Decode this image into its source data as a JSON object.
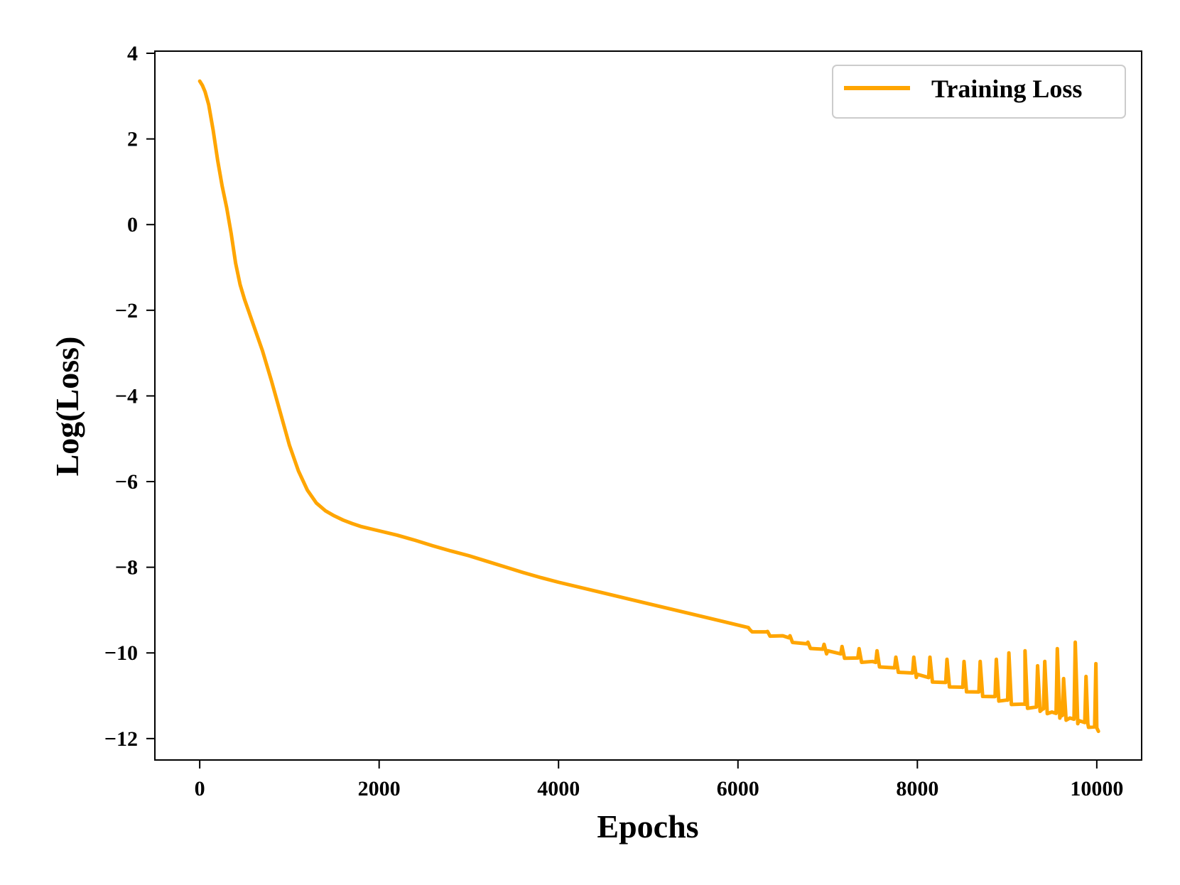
{
  "chart_data": {
    "type": "line",
    "title": "",
    "xlabel": "Epochs",
    "ylabel": "Log(Loss)",
    "xlim": [
      -500,
      10500
    ],
    "ylim": [
      -12.5,
      4.05
    ],
    "x_ticks": [
      0,
      2000,
      4000,
      6000,
      8000,
      10000
    ],
    "y_ticks": [
      4,
      2,
      0,
      -2,
      -4,
      -6,
      -8,
      -10,
      -12
    ],
    "y_tick_labels": [
      "4",
      "2",
      "0",
      "−2",
      "−4",
      "−6",
      "−8",
      "−10",
      "−12"
    ],
    "x_tick_labels": [
      "0",
      "2000",
      "4000",
      "6000",
      "8000",
      "10000"
    ],
    "grid": false,
    "legend": {
      "position": "top-right",
      "entries": [
        "Training Loss"
      ]
    },
    "series": [
      {
        "name": "Training Loss",
        "color": "#FFA500",
        "x": [
          0,
          30,
          60,
          100,
          150,
          200,
          250,
          300,
          350,
          400,
          450,
          500,
          550,
          600,
          700,
          800,
          900,
          1000,
          1100,
          1200,
          1300,
          1400,
          1500,
          1600,
          1700,
          1800,
          1900,
          2000,
          2200,
          2400,
          2600,
          2800,
          3000,
          3200,
          3400,
          3600,
          3800,
          4000,
          4500,
          5000,
          5500,
          6000,
          6500,
          7000,
          7500,
          8000,
          8500,
          9000,
          9200,
          9400,
          9500,
          9600,
          9700,
          9800,
          9900,
          10000
        ],
        "y": [
          3.35,
          3.25,
          3.1,
          2.8,
          2.2,
          1.5,
          0.9,
          0.4,
          -0.2,
          -0.9,
          -1.4,
          -1.75,
          -2.05,
          -2.35,
          -2.95,
          -3.65,
          -4.4,
          -5.15,
          -5.75,
          -6.2,
          -6.5,
          -6.68,
          -6.8,
          -6.9,
          -6.98,
          -7.05,
          -7.1,
          -7.15,
          -7.25,
          -7.37,
          -7.5,
          -7.62,
          -7.73,
          -7.86,
          -7.99,
          -8.12,
          -8.24,
          -8.35,
          -8.6,
          -8.85,
          -9.1,
          -9.35,
          -9.6,
          -9.95,
          -10.2,
          -10.5,
          -10.8,
          -11.1,
          -11.2,
          -11.3,
          -11.38,
          -11.45,
          -11.52,
          -11.58,
          -11.65,
          -11.75
        ],
        "spikes": [
          {
            "x": 6130,
            "peak": -9.45
          },
          {
            "x": 6330,
            "peak": -9.5
          },
          {
            "x": 6580,
            "peak": -9.6
          },
          {
            "x": 6780,
            "peak": -9.75
          },
          {
            "x": 6960,
            "peak": -9.8
          },
          {
            "x": 7160,
            "peak": -9.85
          },
          {
            "x": 7350,
            "peak": -9.9
          },
          {
            "x": 7550,
            "peak": -9.95
          },
          {
            "x": 7760,
            "peak": -10.1
          },
          {
            "x": 7960,
            "peak": -10.1
          },
          {
            "x": 8140,
            "peak": -10.1
          },
          {
            "x": 8330,
            "peak": -10.15
          },
          {
            "x": 8520,
            "peak": -10.2
          },
          {
            "x": 8700,
            "peak": -10.2
          },
          {
            "x": 8880,
            "peak": -10.15
          },
          {
            "x": 9020,
            "peak": -10.0
          },
          {
            "x": 9200,
            "peak": -9.95
          },
          {
            "x": 9340,
            "peak": -10.3
          },
          {
            "x": 9420,
            "peak": -10.2
          },
          {
            "x": 9560,
            "peak": -9.9
          },
          {
            "x": 9630,
            "peak": -10.6
          },
          {
            "x": 9760,
            "peak": -9.75
          },
          {
            "x": 9880,
            "peak": -10.55
          },
          {
            "x": 9990,
            "peak": -10.25
          }
        ]
      }
    ]
  }
}
